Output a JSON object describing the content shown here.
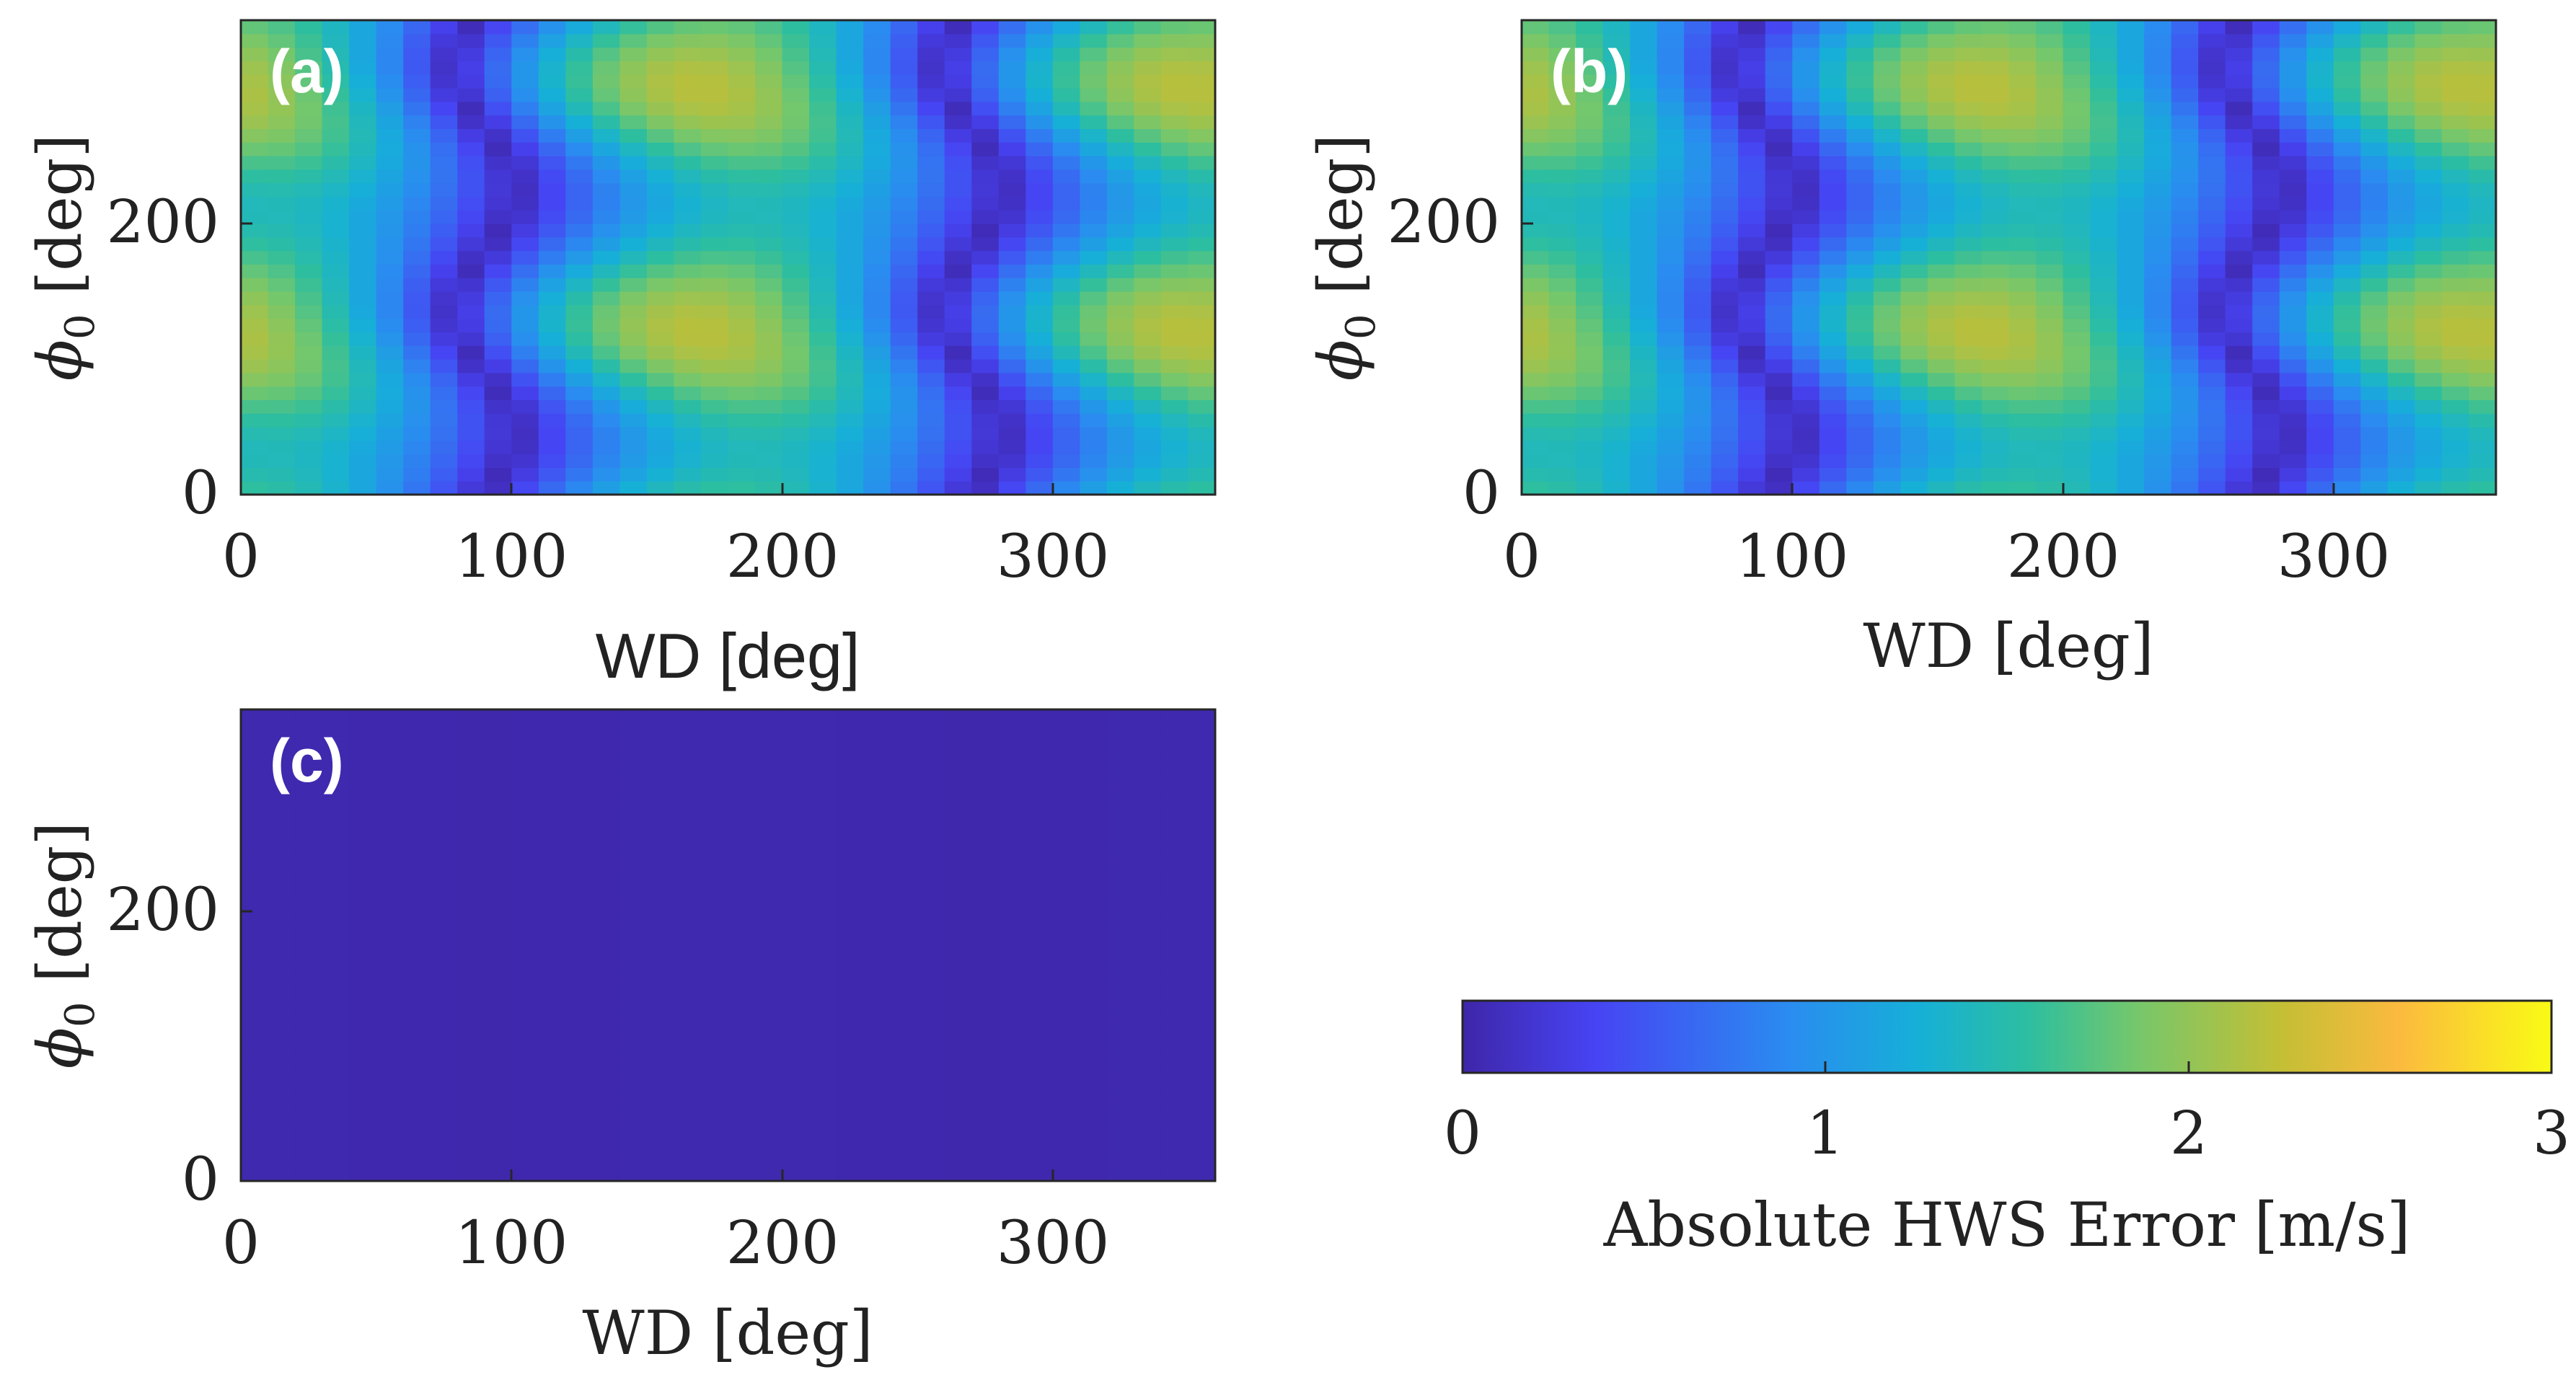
{
  "chart_data": [
    {
      "type": "heatmap",
      "panel": "(a)",
      "title": "",
      "xlabel": "WD [deg]",
      "ylabel": "ϕ0 [deg]",
      "xlim": [
        0,
        360
      ],
      "ylim": [
        0,
        350
      ],
      "xticks": [
        0,
        100,
        200,
        300
      ],
      "yticks": [
        0,
        200
      ],
      "color_limits": [
        0,
        3
      ],
      "pattern": {
        "description_min_wd": [
          90,
          280
        ],
        "max_wd": [
          0,
          180,
          360
        ],
        "max_phi0": [
          120,
          300
        ],
        "approx_min_value": 0.05,
        "approx_max_value": 2.2
      }
    },
    {
      "type": "heatmap",
      "panel": "(b)",
      "title": "",
      "xlabel": "WD [deg]",
      "ylabel": "ϕ0 [deg]",
      "xlim": [
        0,
        360
      ],
      "ylim": [
        0,
        350
      ],
      "xticks": [
        0,
        100,
        200,
        300
      ],
      "yticks": [
        0,
        200
      ],
      "color_limits": [
        0,
        3
      ],
      "pattern": {
        "min_wd": [
          90,
          280
        ],
        "max_wd": [
          0,
          180,
          360
        ],
        "max_phi0": [
          120,
          300
        ],
        "approx_min_value": 0.05,
        "approx_max_value": 2.2
      }
    },
    {
      "type": "heatmap",
      "panel": "(c)",
      "title": "",
      "xlabel": "WD [deg]",
      "ylabel": "ϕ0 [deg]",
      "xlim": [
        0,
        360
      ],
      "ylim": [
        0,
        350
      ],
      "xticks": [
        0,
        100,
        200,
        300
      ],
      "yticks": [
        0,
        200
      ],
      "color_limits": [
        0,
        3
      ],
      "pattern": {
        "approx_value_everywhere": 0.02
      }
    }
  ],
  "colorbar": {
    "label": "Absolute HWS Error [m/s]",
    "ticks": [
      0,
      1,
      2,
      3
    ],
    "range": [
      0,
      3
    ],
    "colormap_stops": [
      "#3e26a8",
      "#4743f3",
      "#2a8cf0",
      "#16b0d7",
      "#2dbea0",
      "#76c76b",
      "#c3bf35",
      "#fbba3f",
      "#f9fb15"
    ]
  },
  "labels": {
    "panel_a": "(a)",
    "panel_b": "(b)",
    "panel_c": "(c)",
    "wd_label": "WD [deg]",
    "phi_symbol": "ϕ",
    "phi_sub": "0",
    "phi_unit": " [deg]",
    "xtick_0": "0",
    "xtick_100": "100",
    "xtick_200": "200",
    "xtick_300": "300",
    "ytick_0": "0",
    "ytick_200": "200",
    "cbar_0": "0",
    "cbar_1": "1",
    "cbar_2": "2",
    "cbar_3": "3"
  }
}
